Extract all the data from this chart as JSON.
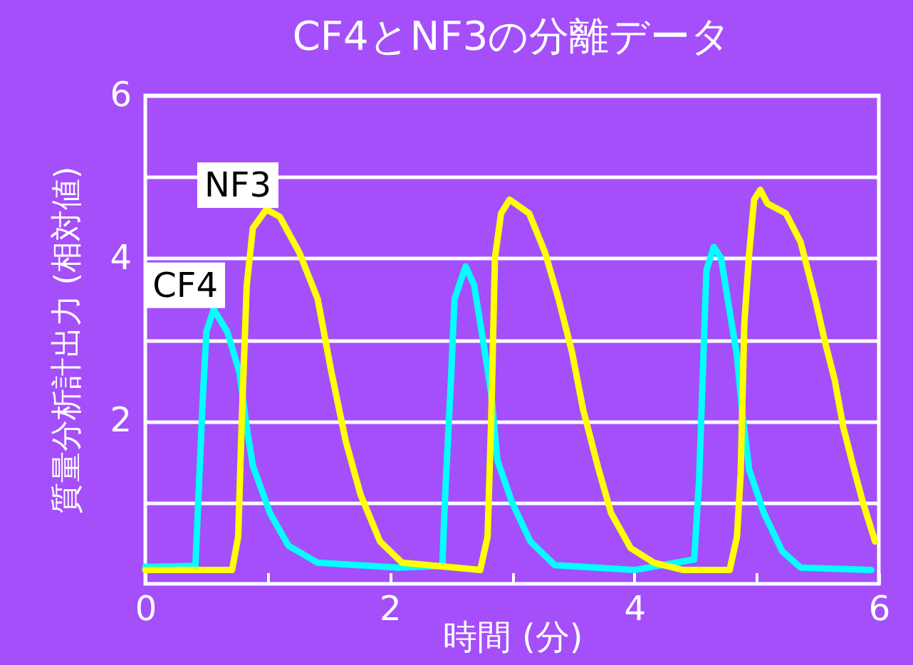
{
  "chart_data": {
    "type": "line",
    "title": "CF4とNF3の分離データ",
    "xlabel": "時間 (分)",
    "ylabel": "質量分析計出力 (相対値)",
    "xlim": [
      0,
      6
    ],
    "xticks": [
      0,
      {
        "value": 1,
        "label": null
      },
      2,
      {
        "value": 3,
        "label": null
      },
      4,
      {
        "value": 5,
        "label": null
      },
      6
    ],
    "ylim": [
      0,
      6
    ],
    "yticks": [
      {
        "value": 1,
        "label": null
      },
      2,
      {
        "value": 3,
        "label": null
      },
      4,
      {
        "value": 5,
        "label": null
      },
      6
    ],
    "grid": "y",
    "legend": false,
    "marker": "none",
    "line_style": "solid",
    "series": [
      {
        "name": "CF4",
        "color": "#00ffff",
        "x": [
          0,
          0.41,
          0.47,
          0.5,
          0.56,
          0.67,
          0.77,
          0.83,
          0.88,
          1.02,
          1.17,
          1.41,
          2.07,
          2.43,
          2.45,
          2.5,
          2.53,
          2.62,
          2.69,
          2.77,
          2.83,
          2.88,
          3.0,
          3.15,
          3.35,
          4.0,
          4.49,
          4.53,
          4.57,
          4.59,
          4.65,
          4.71,
          4.77,
          4.84,
          4.88,
          4.94,
          5.06,
          5.21,
          5.36,
          5.94
        ],
        "values": [
          0.21,
          0.22,
          2.27,
          3.1,
          3.37,
          3.1,
          2.6,
          1.92,
          1.45,
          0.87,
          0.47,
          0.26,
          0.2,
          0.22,
          1.0,
          2.5,
          3.5,
          3.9,
          3.67,
          2.92,
          2.33,
          1.52,
          1.0,
          0.52,
          0.23,
          0.17,
          0.3,
          1.28,
          3.0,
          3.85,
          4.14,
          4.0,
          3.44,
          2.8,
          2.15,
          1.4,
          0.87,
          0.4,
          0.2,
          0.17
        ]
      },
      {
        "name": "NF3",
        "color": "#ffff00",
        "x": [
          0,
          0.71,
          0.76,
          0.79,
          0.83,
          0.88,
          0.99,
          1.1,
          1.26,
          1.41,
          1.52,
          1.64,
          1.76,
          1.92,
          2.1,
          2.74,
          2.8,
          2.83,
          2.86,
          2.91,
          2.98,
          3.14,
          3.27,
          3.38,
          3.49,
          3.58,
          3.7,
          3.81,
          3.97,
          4.16,
          4.4,
          4.78,
          4.84,
          4.87,
          4.9,
          4.94,
          4.98,
          5.03,
          5.09,
          5.24,
          5.36,
          5.48,
          5.56,
          5.64,
          5.71,
          5.79,
          5.87,
          5.97
        ],
        "values": [
          0.17,
          0.17,
          0.58,
          2.04,
          3.67,
          4.37,
          4.6,
          4.51,
          4.07,
          3.5,
          2.62,
          1.75,
          1.1,
          0.52,
          0.26,
          0.17,
          0.58,
          2.04,
          4.0,
          4.55,
          4.72,
          4.55,
          4.07,
          3.5,
          2.85,
          2.15,
          1.45,
          0.87,
          0.44,
          0.26,
          0.17,
          0.17,
          0.58,
          1.35,
          3.2,
          4.07,
          4.72,
          4.84,
          4.67,
          4.55,
          4.2,
          3.5,
          2.97,
          2.5,
          1.92,
          1.45,
          1.0,
          0.52
        ]
      }
    ]
  }
}
